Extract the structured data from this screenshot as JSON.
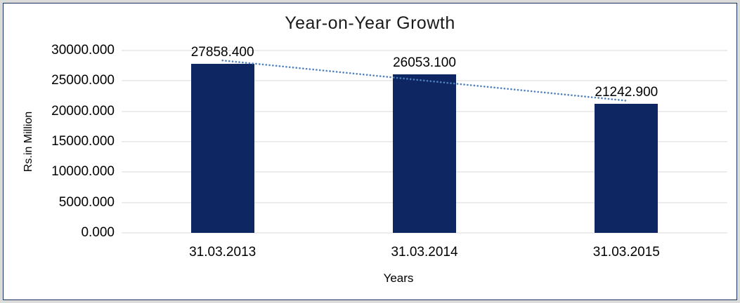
{
  "frame": {
    "outer_bg": "#dbdbdb",
    "border_color": "#16365c",
    "canvas_bg": "#ffffff"
  },
  "chart_data": {
    "type": "bar",
    "title": "Year-on-Year Growth",
    "xlabel": "Years",
    "ylabel": "Rs.in Million",
    "categories": [
      "31.03.2013",
      "31.03.2014",
      "31.03.2015"
    ],
    "values": [
      27858.4,
      26053.1,
      21242.9
    ],
    "data_labels": [
      "27858.400",
      "26053.100",
      "21242.900"
    ],
    "y_axis": {
      "min": 0,
      "max": 30000,
      "step": 5000,
      "tick_labels": [
        "0.000",
        "5000.000",
        "10000.000",
        "15000.000",
        "20000.000",
        "25000.000",
        "30000.000"
      ]
    },
    "ylim": [
      0,
      30000
    ],
    "grid": true,
    "legend": "none",
    "colors": {
      "bar": "#0e2763",
      "trendline": "#4f81bd",
      "gridline": "#d9d9d9",
      "text": "#000000"
    },
    "trendline": {
      "type": "linear",
      "style": "dotted"
    }
  }
}
